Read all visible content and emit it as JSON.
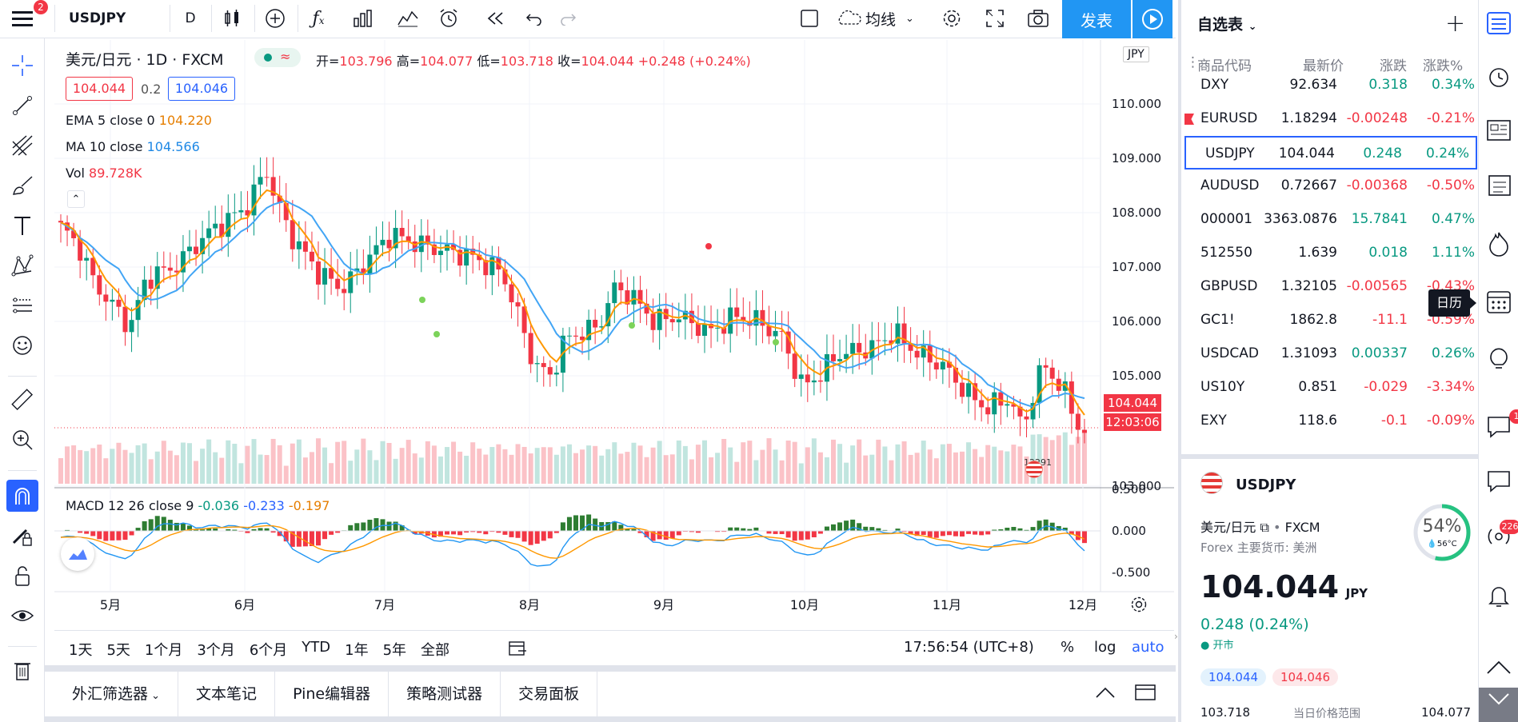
{
  "topbar": {
    "symbol": "USDJPY",
    "interval": "D",
    "indicator_label": "均线",
    "publish": "发表",
    "notif_count": "2"
  },
  "legend": {
    "title": "美元/日元 · 1D · FXCM",
    "o_label": "开=",
    "o": "103.796",
    "h_label": "高=",
    "h": "104.077",
    "l_label": "低=",
    "l": "103.718",
    "c_label": "收=",
    "c": "104.044",
    "chg": "+0.248 (+0.24%)",
    "bid": "104.044",
    "spread": "0.2",
    "ask": "104.046",
    "ema_label": "EMA 5 close 0",
    "ema_val": "104.220",
    "ma_label": "MA 10 close",
    "ma_val": "104.566",
    "vol_label": "Vol",
    "vol_val": "89.728K",
    "macd_label": "MACD 12 26 close 9",
    "macd_v1": "-0.036",
    "macd_v2": "-0.233",
    "macd_v3": "-0.197",
    "vol_badge": "12291"
  },
  "price_axis": {
    "currency": "JPY",
    "ticks": [
      "110.000",
      "109.000",
      "108.000",
      "107.000",
      "106.000",
      "105.000",
      "103.000"
    ],
    "last_price": "104.044",
    "countdown": "12:03:06",
    "macd_ticks": [
      "0.500",
      "0.000",
      "-0.500"
    ]
  },
  "time_axis": {
    "ticks": [
      "5月",
      "6月",
      "7月",
      "8月",
      "9月",
      "10月",
      "11月",
      "12月"
    ]
  },
  "bottom_bar": {
    "ranges": [
      "1天",
      "5天",
      "1个月",
      "3个月",
      "6个月",
      "YTD",
      "1年",
      "5年",
      "全部"
    ],
    "clock": "17:56:54 (UTC+8)",
    "pct": "%",
    "log": "log",
    "auto": "auto"
  },
  "bottom_tabs": [
    "外汇筛选器",
    "文本笔记",
    "Pine编辑器",
    "策略测试器",
    "交易面板"
  ],
  "watchlist": {
    "title": "自选表",
    "cols": [
      "商品代码",
      "最新价",
      "涨跌",
      "涨跌%"
    ],
    "rows": [
      {
        "sym": "DXY",
        "last": "92.634",
        "chg": "0.318",
        "pct": "0.34%",
        "dir": "up"
      },
      {
        "sym": "EURUSD",
        "last": "1.18294",
        "chg": "-0.00248",
        "pct": "-0.21%",
        "dir": "down"
      },
      {
        "sym": "USDJPY",
        "last": "104.044",
        "chg": "0.248",
        "pct": "0.24%",
        "dir": "up"
      },
      {
        "sym": "AUDUSD",
        "last": "0.72667",
        "chg": "-0.00368",
        "pct": "-0.50%",
        "dir": "down"
      },
      {
        "sym": "000001",
        "last": "3363.0876",
        "chg": "15.7841",
        "pct": "0.47%",
        "dir": "up"
      },
      {
        "sym": "512550",
        "last": "1.639",
        "chg": "0.018",
        "pct": "1.11%",
        "dir": "up"
      },
      {
        "sym": "GBPUSD",
        "last": "1.32105",
        "chg": "-0.00565",
        "pct": "-0.43%",
        "dir": "down"
      },
      {
        "sym": "GC1!",
        "last": "1862.8",
        "chg": "-11.1",
        "pct": "-0.59%",
        "dir": "down"
      },
      {
        "sym": "USDCAD",
        "last": "1.31093",
        "chg": "0.00337",
        "pct": "0.26%",
        "dir": "up"
      },
      {
        "sym": "US10Y",
        "last": "0.851",
        "chg": "-0.029",
        "pct": "-3.34%",
        "dir": "down"
      },
      {
        "sym": "EXY",
        "last": "118.6",
        "chg": "-0.1",
        "pct": "-0.09%",
        "dir": "down"
      }
    ]
  },
  "details": {
    "symbol": "USDJPY",
    "name": "美元/日元",
    "exchange": "FXCM",
    "sub": "Forex 主要货币: 美洲",
    "price": "104.044",
    "currency": "JPY",
    "change": "0.248 (0.24%)",
    "status": "开市",
    "bid": "104.044",
    "ask": "104.046",
    "range_low": "103.718",
    "range_label": "当日价格范围",
    "range_high": "104.077",
    "gauge": "54%",
    "temp": "56°C"
  },
  "tooltip": "日历",
  "rightbar": {
    "badge1": "226",
    "badge2": "1"
  },
  "colors": {
    "up": "#089981",
    "down": "#f23645",
    "ema": "#ff9800",
    "ma": "#42a5f5",
    "accent": "#2962ff"
  }
}
